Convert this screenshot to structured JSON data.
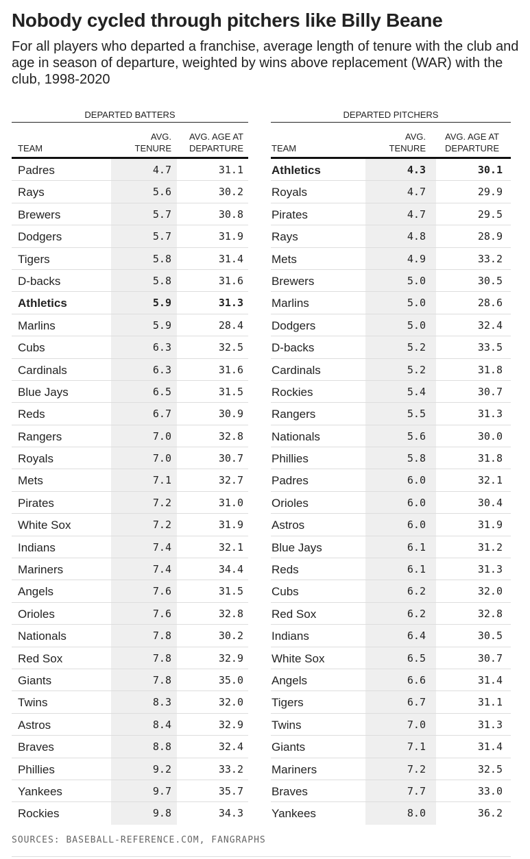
{
  "title": "Nobody cycled through pitchers like Billy Beane",
  "subtitle": "For all players who departed a franchise, average length of tenure with the club and age in season of departure, weighted by wins above replacement (WAR) with the club, 1998-2020",
  "source": "SOURCES: BASEBALL-REFERENCE.COM, FANGRAPHS",
  "colors": {
    "shade": "#efefef",
    "text": "#222222"
  },
  "chart_data": [
    {
      "type": "table",
      "group": "DEPARTED BATTERS",
      "columns": [
        "TEAM",
        "AVG. TENURE",
        "AVG. AGE AT DEPARTURE"
      ],
      "highlight": "Athletics",
      "rows": [
        [
          "Padres",
          "4.7",
          "31.1"
        ],
        [
          "Rays",
          "5.6",
          "30.2"
        ],
        [
          "Brewers",
          "5.7",
          "30.8"
        ],
        [
          "Dodgers",
          "5.7",
          "31.9"
        ],
        [
          "Tigers",
          "5.8",
          "31.4"
        ],
        [
          "D-backs",
          "5.8",
          "31.6"
        ],
        [
          "Athletics",
          "5.9",
          "31.3"
        ],
        [
          "Marlins",
          "5.9",
          "28.4"
        ],
        [
          "Cubs",
          "6.3",
          "32.5"
        ],
        [
          "Cardinals",
          "6.3",
          "31.6"
        ],
        [
          "Blue Jays",
          "6.5",
          "31.5"
        ],
        [
          "Reds",
          "6.7",
          "30.9"
        ],
        [
          "Rangers",
          "7.0",
          "32.8"
        ],
        [
          "Royals",
          "7.0",
          "30.7"
        ],
        [
          "Mets",
          "7.1",
          "32.7"
        ],
        [
          "Pirates",
          "7.2",
          "31.0"
        ],
        [
          "White Sox",
          "7.2",
          "31.9"
        ],
        [
          "Indians",
          "7.4",
          "32.1"
        ],
        [
          "Mariners",
          "7.4",
          "34.4"
        ],
        [
          "Angels",
          "7.6",
          "31.5"
        ],
        [
          "Orioles",
          "7.6",
          "32.8"
        ],
        [
          "Nationals",
          "7.8",
          "30.2"
        ],
        [
          "Red Sox",
          "7.8",
          "32.9"
        ],
        [
          "Giants",
          "7.8",
          "35.0"
        ],
        [
          "Twins",
          "8.3",
          "32.0"
        ],
        [
          "Astros",
          "8.4",
          "32.9"
        ],
        [
          "Braves",
          "8.8",
          "32.4"
        ],
        [
          "Phillies",
          "9.2",
          "33.2"
        ],
        [
          "Yankees",
          "9.7",
          "35.7"
        ],
        [
          "Rockies",
          "9.8",
          "34.3"
        ]
      ]
    },
    {
      "type": "table",
      "group": "DEPARTED PITCHERS",
      "columns": [
        "TEAM",
        "AVG. TENURE",
        "AVG. AGE AT DEPARTURE"
      ],
      "highlight": "Athletics",
      "rows": [
        [
          "Athletics",
          "4.3",
          "30.1"
        ],
        [
          "Royals",
          "4.7",
          "29.9"
        ],
        [
          "Pirates",
          "4.7",
          "29.5"
        ],
        [
          "Rays",
          "4.8",
          "28.9"
        ],
        [
          "Mets",
          "4.9",
          "33.2"
        ],
        [
          "Brewers",
          "5.0",
          "30.5"
        ],
        [
          "Marlins",
          "5.0",
          "28.6"
        ],
        [
          "Dodgers",
          "5.0",
          "32.4"
        ],
        [
          "D-backs",
          "5.2",
          "33.5"
        ],
        [
          "Cardinals",
          "5.2",
          "31.8"
        ],
        [
          "Rockies",
          "5.4",
          "30.7"
        ],
        [
          "Rangers",
          "5.5",
          "31.3"
        ],
        [
          "Nationals",
          "5.6",
          "30.0"
        ],
        [
          "Phillies",
          "5.8",
          "31.8"
        ],
        [
          "Padres",
          "6.0",
          "32.1"
        ],
        [
          "Orioles",
          "6.0",
          "30.4"
        ],
        [
          "Astros",
          "6.0",
          "31.9"
        ],
        [
          "Blue Jays",
          "6.1",
          "31.2"
        ],
        [
          "Reds",
          "6.1",
          "31.3"
        ],
        [
          "Cubs",
          "6.2",
          "32.0"
        ],
        [
          "Red Sox",
          "6.2",
          "32.8"
        ],
        [
          "Indians",
          "6.4",
          "30.5"
        ],
        [
          "White Sox",
          "6.5",
          "30.7"
        ],
        [
          "Angels",
          "6.6",
          "31.4"
        ],
        [
          "Tigers",
          "6.7",
          "31.1"
        ],
        [
          "Twins",
          "7.0",
          "31.3"
        ],
        [
          "Giants",
          "7.1",
          "31.4"
        ],
        [
          "Mariners",
          "7.2",
          "32.5"
        ],
        [
          "Braves",
          "7.7",
          "33.0"
        ],
        [
          "Yankees",
          "8.0",
          "36.2"
        ]
      ]
    }
  ]
}
